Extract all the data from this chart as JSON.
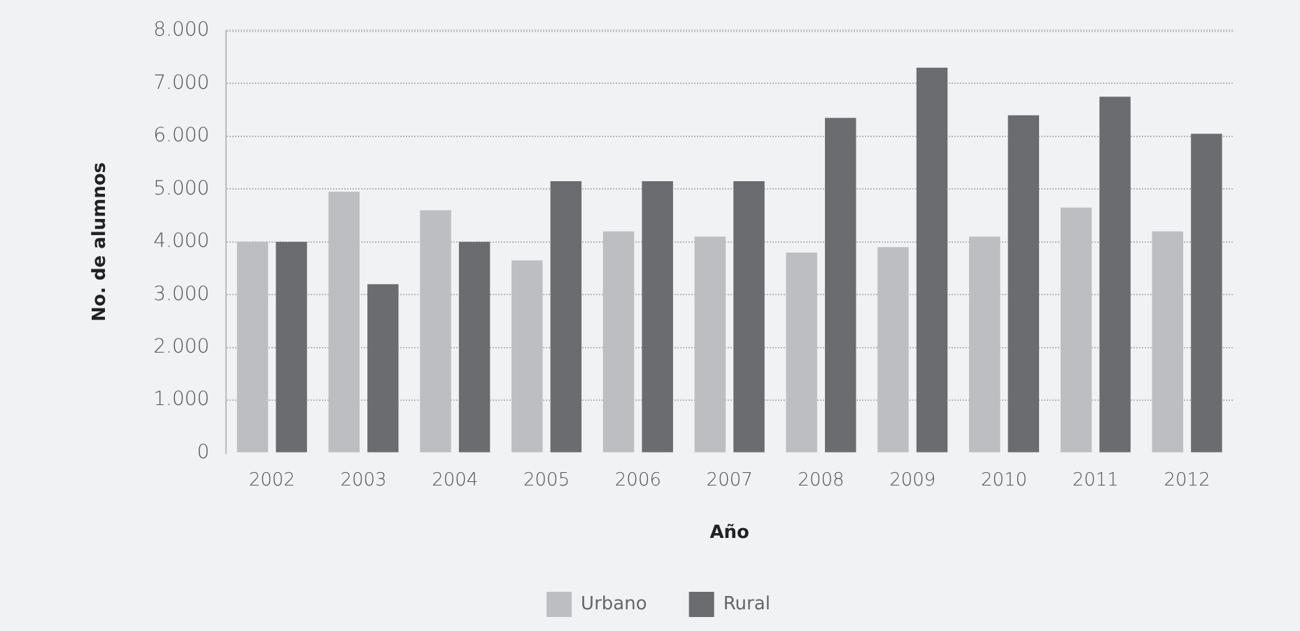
{
  "chart_data": {
    "type": "bar",
    "xlabel": "Año",
    "ylabel": "No. de alumnos",
    "categories": [
      "2002",
      "2003",
      "2004",
      "2005",
      "2006",
      "2007",
      "2008",
      "2009",
      "2010",
      "2011",
      "2012"
    ],
    "series": [
      {
        "name": "Urbano",
        "color": "#bdbec1",
        "values": [
          4000,
          4950,
          4600,
          3650,
          4200,
          4100,
          3800,
          3900,
          4100,
          4650,
          4200
        ]
      },
      {
        "name": "Rural",
        "color": "#6b6c70",
        "values": [
          4000,
          3200,
          4000,
          5150,
          5150,
          5150,
          6350,
          7300,
          6400,
          6750,
          6050
        ]
      }
    ],
    "ylim": [
      0,
      8000
    ],
    "yticks": [
      {
        "value": 0,
        "label": "0"
      },
      {
        "value": 1000,
        "label": "1.000"
      },
      {
        "value": 2000,
        "label": "2.000"
      },
      {
        "value": 3000,
        "label": "3.000"
      },
      {
        "value": 4000,
        "label": "4.000"
      },
      {
        "value": 5000,
        "label": "5.000"
      },
      {
        "value": 6000,
        "label": "6.000"
      },
      {
        "value": 7000,
        "label": "7.000"
      },
      {
        "value": 8000,
        "label": "8.000"
      }
    ],
    "grid": "y",
    "legend": "bottom"
  }
}
